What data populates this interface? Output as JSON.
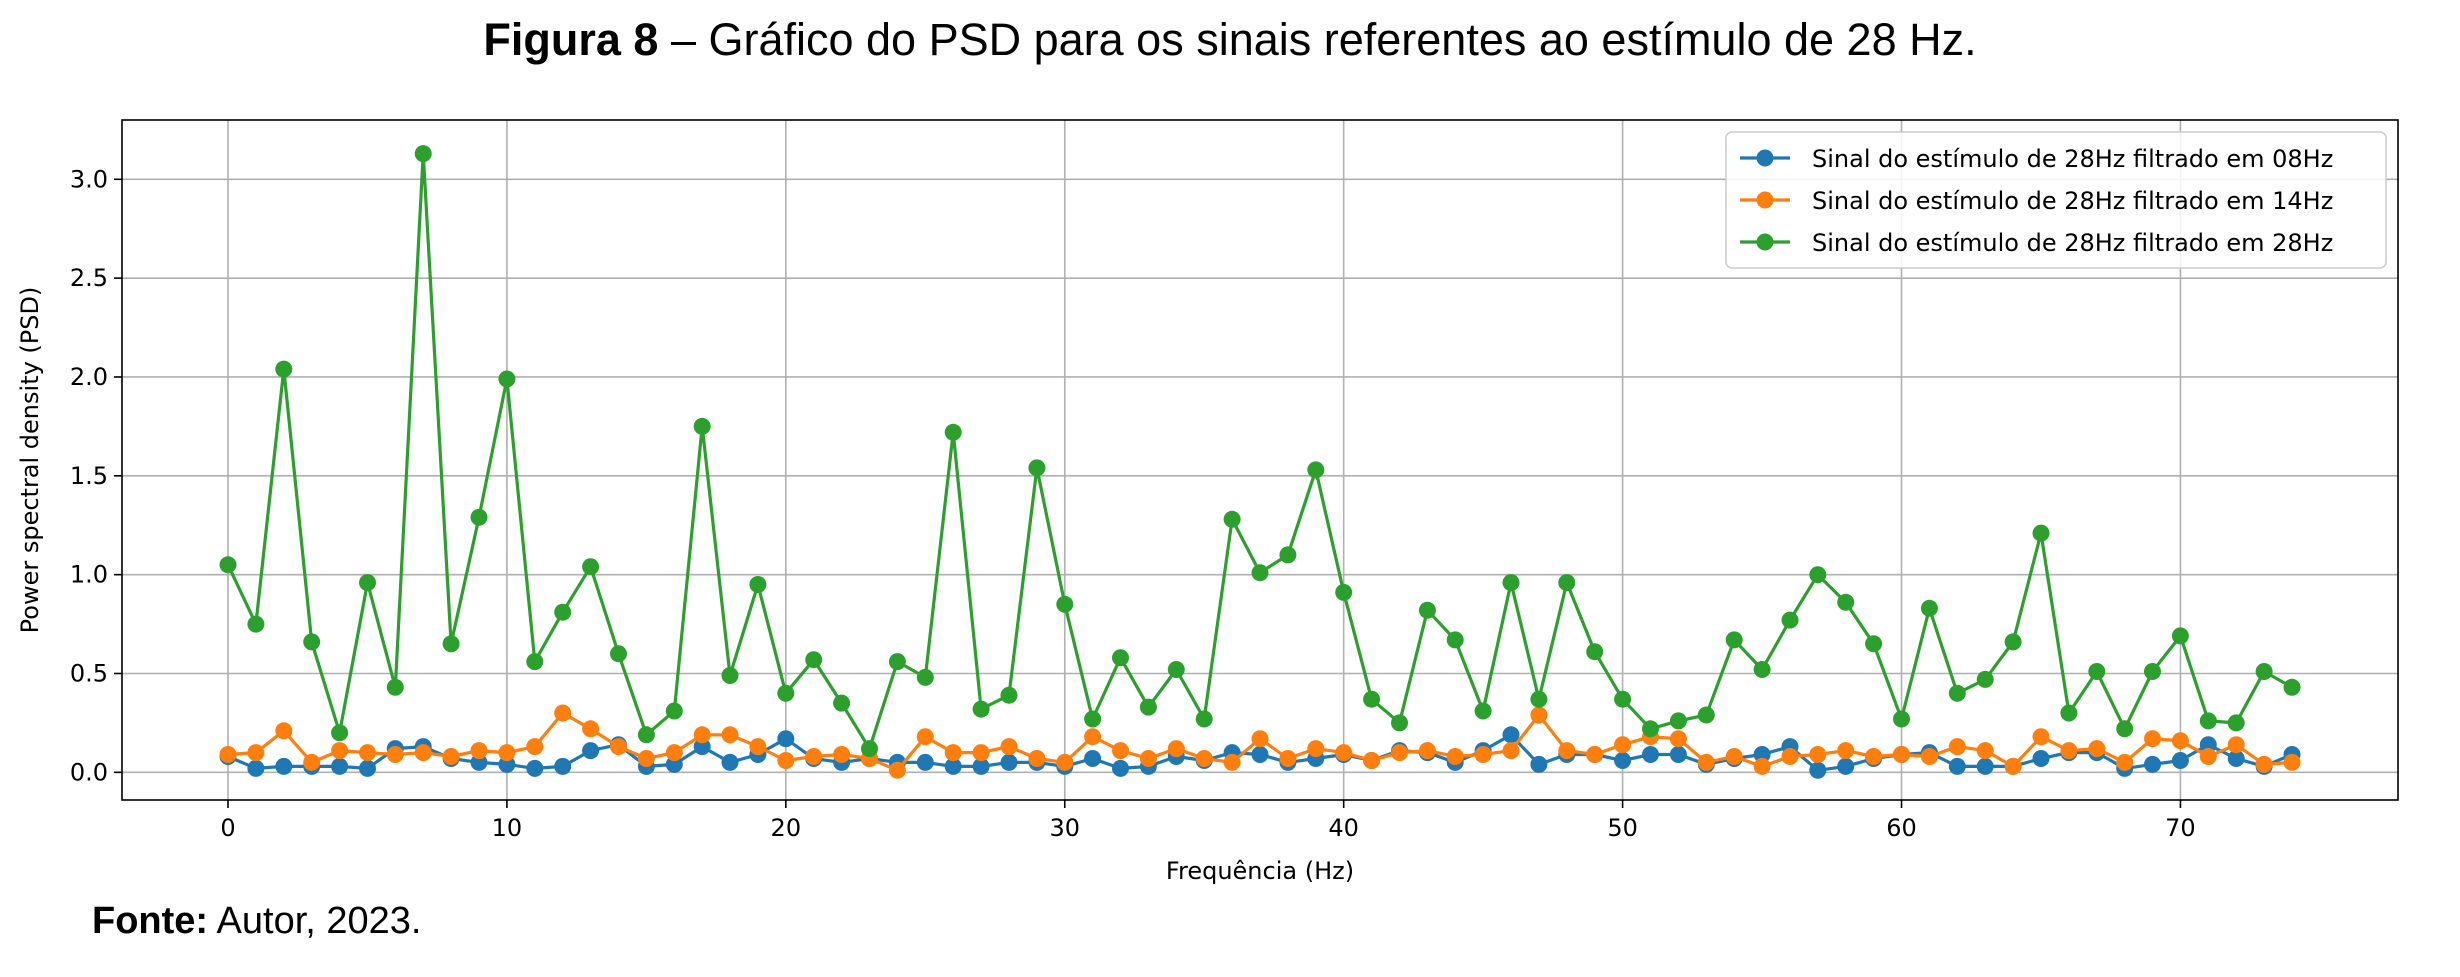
{
  "caption": {
    "label": "Figura 8",
    "text": " – Gráfico do PSD para os sinais referentes ao estímulo de 28 Hz."
  },
  "source": {
    "label": "Fonte:",
    "text": " Autor, 2023."
  },
  "chart_data": {
    "type": "line",
    "xlabel": "Frequência (Hz)",
    "ylabel": "Power spectral density (PSD)",
    "xlim": [
      -3.8,
      77.8
    ],
    "ylim": [
      -0.14,
      3.3
    ],
    "xticks": [
      0,
      10,
      20,
      30,
      40,
      50,
      60,
      70
    ],
    "yticks": [
      0.0,
      0.5,
      1.0,
      1.5,
      2.0,
      2.5,
      3.0
    ],
    "ytick_labels": [
      "0.0",
      "0.5",
      "1.0",
      "1.5",
      "2.0",
      "2.5",
      "3.0"
    ],
    "grid": true,
    "legend_position": "top-right",
    "x": [
      0,
      1,
      2,
      3,
      4,
      5,
      6,
      7,
      8,
      9,
      10,
      11,
      12,
      13,
      14,
      15,
      16,
      17,
      18,
      19,
      20,
      21,
      22,
      23,
      24,
      25,
      26,
      27,
      28,
      29,
      30,
      31,
      32,
      33,
      34,
      35,
      36,
      37,
      38,
      39,
      40,
      41,
      42,
      43,
      44,
      45,
      46,
      47,
      48,
      49,
      50,
      51,
      52,
      53,
      54,
      55,
      56,
      57,
      58,
      59,
      60,
      61,
      62,
      63,
      64,
      65,
      66,
      67,
      68,
      69,
      70,
      71,
      72,
      73,
      74
    ],
    "series": [
      {
        "name": "Sinal do estímulo de 28Hz filtrado em 08Hz",
        "color": "#1f77b4",
        "values": [
          0.08,
          0.02,
          0.03,
          0.03,
          0.03,
          0.02,
          0.12,
          0.13,
          0.07,
          0.05,
          0.04,
          0.02,
          0.03,
          0.11,
          0.14,
          0.03,
          0.04,
          0.13,
          0.05,
          0.09,
          0.17,
          0.07,
          0.05,
          0.07,
          0.05,
          0.05,
          0.03,
          0.03,
          0.05,
          0.05,
          0.03,
          0.07,
          0.02,
          0.03,
          0.08,
          0.06,
          0.1,
          0.09,
          0.05,
          0.07,
          0.09,
          0.06,
          0.11,
          0.1,
          0.05,
          0.11,
          0.19,
          0.04,
          0.09,
          0.09,
          0.06,
          0.09,
          0.09,
          0.04,
          0.07,
          0.09,
          0.13,
          0.01,
          0.03,
          0.07,
          0.09,
          0.1,
          0.03,
          0.03,
          0.03,
          0.07,
          0.1,
          0.1,
          0.02,
          0.04,
          0.06,
          0.14,
          0.07,
          0.03,
          0.09
        ]
      },
      {
        "name": "Sinal do estímulo de 28Hz filtrado em 14Hz",
        "color": "#ff7f0e",
        "values": [
          0.09,
          0.1,
          0.21,
          0.05,
          0.11,
          0.1,
          0.09,
          0.1,
          0.08,
          0.11,
          0.1,
          0.13,
          0.3,
          0.22,
          0.13,
          0.07,
          0.1,
          0.19,
          0.19,
          0.13,
          0.06,
          0.08,
          0.09,
          0.07,
          0.01,
          0.18,
          0.1,
          0.1,
          0.13,
          0.07,
          0.05,
          0.18,
          0.11,
          0.07,
          0.12,
          0.07,
          0.05,
          0.17,
          0.07,
          0.12,
          0.1,
          0.06,
          0.1,
          0.11,
          0.08,
          0.09,
          0.11,
          0.29,
          0.11,
          0.09,
          0.14,
          0.18,
          0.17,
          0.05,
          0.08,
          0.03,
          0.08,
          0.09,
          0.11,
          0.08,
          0.09,
          0.08,
          0.13,
          0.11,
          0.03,
          0.18,
          0.11,
          0.12,
          0.05,
          0.17,
          0.16,
          0.08,
          0.14,
          0.04,
          0.05
        ]
      },
      {
        "name": "Sinal do estímulo de 28Hz filtrado em 28Hz",
        "color": "#2ca02c",
        "values": [
          1.05,
          0.75,
          2.04,
          0.66,
          0.2,
          0.96,
          0.43,
          3.13,
          0.65,
          1.29,
          1.99,
          0.56,
          0.81,
          1.04,
          0.6,
          0.19,
          0.31,
          1.75,
          0.49,
          0.95,
          0.4,
          0.57,
          0.35,
          0.12,
          0.56,
          0.48,
          1.72,
          0.32,
          0.39,
          1.54,
          0.85,
          0.27,
          0.58,
          0.33,
          0.52,
          0.27,
          1.28,
          1.01,
          1.1,
          1.53,
          0.91,
          0.37,
          0.25,
          0.82,
          0.67,
          0.31,
          0.96,
          0.37,
          0.96,
          0.61,
          0.37,
          0.22,
          0.26,
          0.29,
          0.67,
          0.52,
          0.77,
          1.0,
          0.86,
          0.65,
          0.27,
          0.83,
          0.4,
          0.47,
          0.66,
          1.21,
          0.3,
          0.51,
          0.22,
          0.51,
          0.69,
          0.26,
          0.25,
          0.51,
          0.43
        ]
      }
    ]
  }
}
